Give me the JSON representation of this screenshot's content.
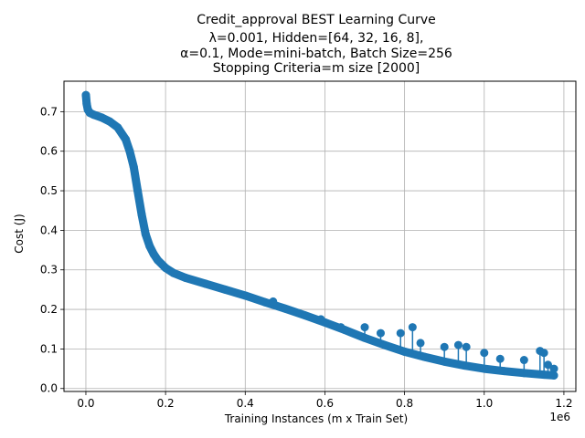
{
  "chart_data": {
    "type": "line",
    "title_lines": [
      "Credit_approval BEST Learning Curve",
      "λ=0.001,  Hidden=[64, 32, 16, 8],",
      "α=0.1, Mode=mini-batch, Batch Size=256",
      "Stopping Criteria=m size [2000]"
    ],
    "xlabel": "Training Instances (m x Train Set)",
    "ylabel": "Cost (J)",
    "x_offset_text": "1e6",
    "xlim": [
      -55000,
      1230000
    ],
    "ylim": [
      -0.0075,
      0.777
    ],
    "x_ticks": [
      0,
      200000,
      400000,
      600000,
      800000,
      1000000,
      1200000
    ],
    "x_tick_labels": [
      "0.0",
      "0.2",
      "0.4",
      "0.6",
      "0.8",
      "1.0",
      "1.2"
    ],
    "y_ticks": [
      0.0,
      0.1,
      0.2,
      0.3,
      0.4,
      0.5,
      0.6,
      0.7
    ],
    "y_tick_labels": [
      "0.0",
      "0.1",
      "0.2",
      "0.3",
      "0.4",
      "0.5",
      "0.6",
      "0.7"
    ],
    "grid": true,
    "color": "#1f77b4",
    "marker": "circle",
    "series": [
      {
        "points": [
          [
            0,
            0.742
          ],
          [
            2000,
            0.72
          ],
          [
            5000,
            0.705
          ],
          [
            10000,
            0.697
          ],
          [
            20000,
            0.692
          ],
          [
            40000,
            0.685
          ],
          [
            60000,
            0.675
          ],
          [
            80000,
            0.66
          ],
          [
            100000,
            0.63
          ],
          [
            110000,
            0.6
          ],
          [
            120000,
            0.56
          ],
          [
            130000,
            0.5
          ],
          [
            140000,
            0.44
          ],
          [
            150000,
            0.39
          ],
          [
            160000,
            0.36
          ],
          [
            170000,
            0.34
          ],
          [
            180000,
            0.325
          ],
          [
            200000,
            0.305
          ],
          [
            220000,
            0.292
          ],
          [
            250000,
            0.28
          ],
          [
            300000,
            0.265
          ],
          [
            350000,
            0.25
          ],
          [
            400000,
            0.235
          ],
          [
            450000,
            0.218
          ],
          [
            500000,
            0.202
          ],
          [
            550000,
            0.185
          ],
          [
            600000,
            0.167
          ],
          [
            650000,
            0.148
          ],
          [
            700000,
            0.128
          ],
          [
            750000,
            0.11
          ],
          [
            800000,
            0.093
          ],
          [
            850000,
            0.08
          ],
          [
            900000,
            0.068
          ],
          [
            950000,
            0.058
          ],
          [
            1000000,
            0.05
          ],
          [
            1050000,
            0.044
          ],
          [
            1100000,
            0.039
          ],
          [
            1150000,
            0.035
          ],
          [
            1175000,
            0.033
          ]
        ]
      }
    ],
    "spikes": [
      [
        470000,
        0.22
      ],
      [
        590000,
        0.175
      ],
      [
        640000,
        0.155
      ],
      [
        700000,
        0.155
      ],
      [
        740000,
        0.14
      ],
      [
        790000,
        0.14
      ],
      [
        820000,
        0.155
      ],
      [
        840000,
        0.115
      ],
      [
        900000,
        0.105
      ],
      [
        935000,
        0.11
      ],
      [
        955000,
        0.105
      ],
      [
        1000000,
        0.09
      ],
      [
        1040000,
        0.075
      ],
      [
        1100000,
        0.072
      ],
      [
        1140000,
        0.095
      ],
      [
        1150000,
        0.09
      ],
      [
        1160000,
        0.06
      ],
      [
        1175000,
        0.05
      ]
    ]
  }
}
